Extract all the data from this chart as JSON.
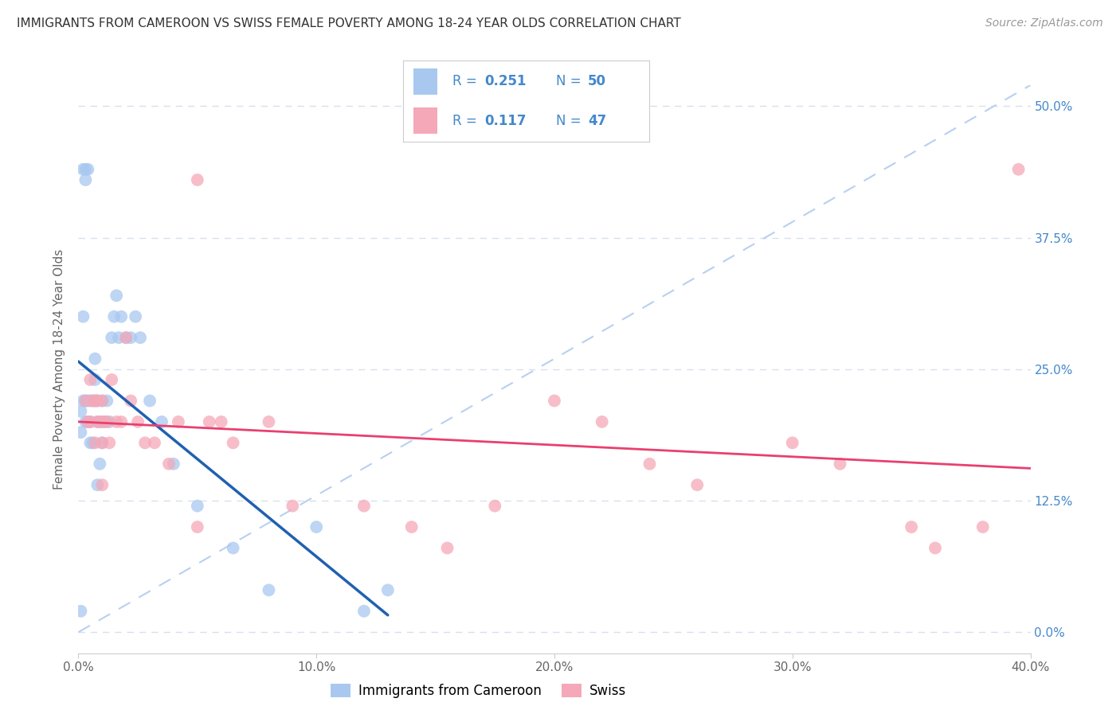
{
  "title": "IMMIGRANTS FROM CAMEROON VS SWISS FEMALE POVERTY AMONG 18-24 YEAR OLDS CORRELATION CHART",
  "source": "Source: ZipAtlas.com",
  "ylabel": "Female Poverty Among 18-24 Year Olds",
  "xlim": [
    0.0,
    0.4
  ],
  "ylim": [
    -0.02,
    0.52
  ],
  "xlabel_vals": [
    0.0,
    0.1,
    0.2,
    0.3,
    0.4
  ],
  "xlabel_ticks": [
    "0.0%",
    "10.0%",
    "20.0%",
    "30.0%",
    "40.0%"
  ],
  "ylabel_vals": [
    0.0,
    0.125,
    0.25,
    0.375,
    0.5
  ],
  "ylabel_ticks": [
    "0.0%",
    "12.5%",
    "25.0%",
    "37.5%",
    "50.0%"
  ],
  "color_blue": "#A8C8F0",
  "color_pink": "#F5A8B8",
  "line_blue": "#2060B0",
  "line_pink": "#E84070",
  "line_dashed": "#B8D0F0",
  "background": "#FFFFFF",
  "grid_color": "#D8E0EC",
  "blue_x": [
    0.001,
    0.001,
    0.002,
    0.002,
    0.003,
    0.003,
    0.004,
    0.004,
    0.005,
    0.005,
    0.005,
    0.006,
    0.006,
    0.007,
    0.007,
    0.007,
    0.008,
    0.008,
    0.008,
    0.009,
    0.009,
    0.01,
    0.01,
    0.01,
    0.011,
    0.012,
    0.013,
    0.014,
    0.015,
    0.016,
    0.017,
    0.018,
    0.02,
    0.022,
    0.024,
    0.026,
    0.03,
    0.035,
    0.04,
    0.05,
    0.065,
    0.08,
    0.1,
    0.12,
    0.13,
    0.002,
    0.003,
    0.003,
    0.004,
    0.001
  ],
  "blue_y": [
    0.21,
    0.19,
    0.3,
    0.22,
    0.2,
    0.22,
    0.2,
    0.22,
    0.2,
    0.22,
    0.18,
    0.22,
    0.18,
    0.22,
    0.24,
    0.26,
    0.2,
    0.22,
    0.14,
    0.2,
    0.16,
    0.2,
    0.22,
    0.18,
    0.2,
    0.22,
    0.2,
    0.28,
    0.3,
    0.32,
    0.28,
    0.3,
    0.28,
    0.28,
    0.3,
    0.28,
    0.22,
    0.2,
    0.16,
    0.12,
    0.08,
    0.04,
    0.1,
    0.02,
    0.04,
    0.44,
    0.43,
    0.44,
    0.44,
    0.02
  ],
  "pink_x": [
    0.003,
    0.004,
    0.005,
    0.005,
    0.006,
    0.007,
    0.007,
    0.008,
    0.008,
    0.009,
    0.01,
    0.01,
    0.011,
    0.012,
    0.013,
    0.014,
    0.016,
    0.018,
    0.02,
    0.022,
    0.025,
    0.028,
    0.032,
    0.038,
    0.042,
    0.05,
    0.055,
    0.06,
    0.065,
    0.08,
    0.09,
    0.12,
    0.14,
    0.155,
    0.175,
    0.2,
    0.22,
    0.24,
    0.26,
    0.3,
    0.32,
    0.35,
    0.36,
    0.38,
    0.395,
    0.05,
    0.01
  ],
  "pink_y": [
    0.22,
    0.2,
    0.24,
    0.2,
    0.22,
    0.22,
    0.18,
    0.22,
    0.2,
    0.2,
    0.22,
    0.18,
    0.2,
    0.2,
    0.18,
    0.24,
    0.2,
    0.2,
    0.28,
    0.22,
    0.2,
    0.18,
    0.18,
    0.16,
    0.2,
    0.1,
    0.2,
    0.2,
    0.18,
    0.2,
    0.12,
    0.12,
    0.1,
    0.08,
    0.12,
    0.22,
    0.2,
    0.16,
    0.14,
    0.18,
    0.16,
    0.1,
    0.08,
    0.1,
    0.44,
    0.43,
    0.14
  ]
}
